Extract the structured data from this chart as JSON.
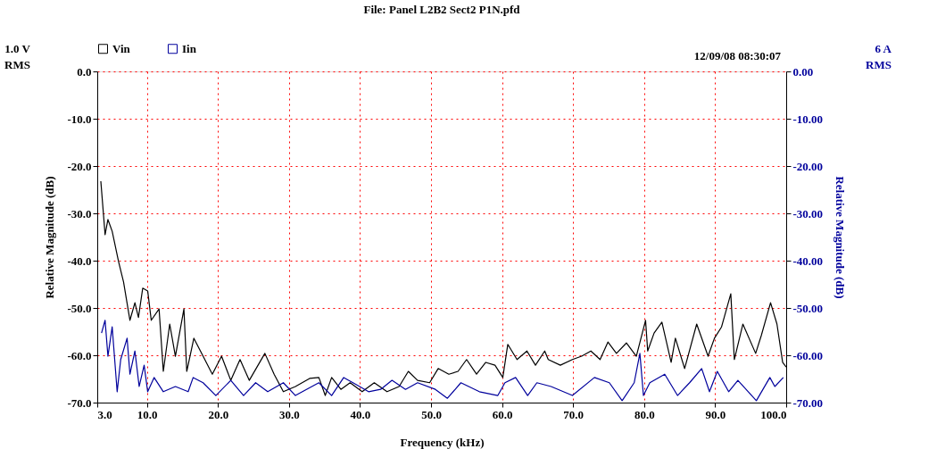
{
  "chart_data": {
    "type": "line",
    "title": "File: Panel L2B2 Sect2 P1N.pfd",
    "xlabel": "Frequency (kHz)",
    "ylabel": "Relative Magnitude (dB)",
    "y2label": "Relative Magnitude (dB)",
    "annotations": [
      "1.0 V RMS",
      "6 A RMS",
      "12/09/08 08:30:07"
    ],
    "xlim": [
      3,
      100
    ],
    "xticks": [
      {
        "value": 3,
        "label": "3.0"
      },
      {
        "value": 10,
        "label": "10.0"
      },
      {
        "value": 20,
        "label": "20.0"
      },
      {
        "value": 30,
        "label": "30.0"
      },
      {
        "value": 40,
        "label": "40.0"
      },
      {
        "value": 50,
        "label": "50.0"
      },
      {
        "value": 60,
        "label": "60.0"
      },
      {
        "value": 70,
        "label": "70.0"
      },
      {
        "value": 80,
        "label": "80.0"
      },
      {
        "value": 90,
        "label": "90.0"
      },
      {
        "value": 100,
        "label": "100.0"
      }
    ],
    "ylim": [
      -70,
      0
    ],
    "yticks": [
      {
        "value": 0,
        "label": "0.0"
      },
      {
        "value": -10,
        "label": "-10.0"
      },
      {
        "value": -20,
        "label": "-20.0"
      },
      {
        "value": -30,
        "label": "-30.0"
      },
      {
        "value": -40,
        "label": "-40.0"
      },
      {
        "value": -50,
        "label": "-50.0"
      },
      {
        "value": -60,
        "label": "-60.0"
      },
      {
        "value": -70,
        "label": "-70.0"
      }
    ],
    "y2lim": [
      -70,
      0
    ],
    "y2ticks": [
      {
        "value": 0,
        "label": "0.00"
      },
      {
        "value": -10,
        "label": "-10.00"
      },
      {
        "value": -20,
        "label": "-20.00"
      },
      {
        "value": -30,
        "label": "-30.00"
      },
      {
        "value": -40,
        "label": "-40.00"
      },
      {
        "value": -50,
        "label": "-50.00"
      },
      {
        "value": -60,
        "label": "-60.00"
      },
      {
        "value": -70,
        "label": "-70.00"
      }
    ],
    "grid": true,
    "legend": "top",
    "marker": "none",
    "line_style": "solid",
    "series": [
      {
        "name": "Vin",
        "color": "#000000",
        "x": [
          3.5,
          4.1,
          4.5,
          5.1,
          6.0,
          6.7,
          7.6,
          8.3,
          8.8,
          9.4,
          10.1,
          10.6,
          11.7,
          12.3,
          13.2,
          14.0,
          15.2,
          15.6,
          16.6,
          17.9,
          19.2,
          20.5,
          21.8,
          23.1,
          24.4,
          26.6,
          27.9,
          29.2,
          30.9,
          32.9,
          34.2,
          35.1,
          36.0,
          37.3,
          38.6,
          40.3,
          42.0,
          43.8,
          45.5,
          46.8,
          48.1,
          49.8,
          51.0,
          52.5,
          53.8,
          55.0,
          56.4,
          57.7,
          59.0,
          60.1,
          60.8,
          62.1,
          63.5,
          64.7,
          66.0,
          66.5,
          68.2,
          69.9,
          71.2,
          72.5,
          73.8,
          74.9,
          76.1,
          77.5,
          78.9,
          80.2,
          80.5,
          81.4,
          82.5,
          83.8,
          84.4,
          85.7,
          87.4,
          89.0,
          89.9,
          90.9,
          92.2,
          92.7,
          93.9,
          95.7,
          96.5,
          97.8,
          98.7,
          99.5,
          100.0
        ],
        "values": [
          -23.2,
          -34.5,
          -31.3,
          -33.8,
          -40.2,
          -44.5,
          -52.6,
          -48.9,
          -52.0,
          -45.8,
          -46.4,
          -52.6,
          -50.2,
          -63.4,
          -53.4,
          -60.2,
          -50.2,
          -63.4,
          -56.4,
          -60.2,
          -64.0,
          -60.2,
          -65.3,
          -60.9,
          -65.3,
          -59.6,
          -64.0,
          -67.7,
          -66.6,
          -64.9,
          -64.7,
          -68.5,
          -64.7,
          -67.2,
          -65.8,
          -67.7,
          -65.8,
          -67.7,
          -66.6,
          -63.4,
          -65.3,
          -65.8,
          -62.8,
          -64.0,
          -63.4,
          -60.9,
          -64.0,
          -61.5,
          -62.1,
          -64.7,
          -57.7,
          -60.9,
          -59.1,
          -62.1,
          -59.1,
          -60.9,
          -62.1,
          -60.9,
          -60.2,
          -59.1,
          -60.9,
          -57.2,
          -59.6,
          -57.4,
          -60.2,
          -52.6,
          -59.1,
          -55.3,
          -53.0,
          -61.5,
          -56.4,
          -62.8,
          -53.4,
          -60.2,
          -56.4,
          -54.0,
          -47.0,
          -60.9,
          -53.4,
          -59.6,
          -55.8,
          -48.9,
          -53.4,
          -61.5,
          -62.5
        ]
      },
      {
        "name": "Iin",
        "color": "#00009c",
        "axis": "y2",
        "x": [
          3.6,
          4.1,
          4.5,
          5.1,
          5.8,
          6.3,
          7.2,
          7.6,
          8.3,
          8.9,
          9.6,
          10.1,
          11.0,
          12.3,
          14.0,
          15.8,
          16.5,
          17.9,
          19.7,
          21.8,
          23.6,
          25.3,
          27.0,
          29.2,
          30.9,
          34.2,
          36.0,
          37.7,
          39.0,
          41.2,
          42.9,
          44.5,
          46.4,
          48.1,
          50.6,
          52.3,
          54.2,
          56.8,
          59.4,
          60.4,
          61.9,
          63.6,
          64.9,
          66.9,
          69.9,
          73.0,
          75.1,
          76.9,
          78.6,
          79.4,
          79.9,
          80.8,
          82.9,
          84.7,
          86.4,
          88.1,
          89.2,
          90.3,
          91.9,
          93.2,
          95.8,
          97.7,
          98.4,
          99.6
        ],
        "values": [
          -55.3,
          -52.6,
          -60.2,
          -54.0,
          -67.7,
          -60.9,
          -56.4,
          -64.0,
          -59.1,
          -66.6,
          -62.1,
          -67.7,
          -64.7,
          -67.7,
          -66.6,
          -67.7,
          -64.7,
          -65.8,
          -68.5,
          -65.3,
          -68.5,
          -65.8,
          -67.7,
          -65.8,
          -68.5,
          -65.8,
          -68.5,
          -64.7,
          -65.8,
          -67.7,
          -67.2,
          -65.3,
          -67.2,
          -65.8,
          -67.2,
          -69.1,
          -65.8,
          -67.7,
          -68.5,
          -65.8,
          -64.7,
          -68.5,
          -65.8,
          -66.6,
          -68.5,
          -64.7,
          -65.8,
          -69.6,
          -65.8,
          -59.6,
          -68.5,
          -65.8,
          -64.0,
          -68.5,
          -65.8,
          -62.8,
          -67.7,
          -63.4,
          -67.7,
          -65.3,
          -69.6,
          -64.7,
          -66.6,
          -64.7
        ]
      }
    ]
  }
}
